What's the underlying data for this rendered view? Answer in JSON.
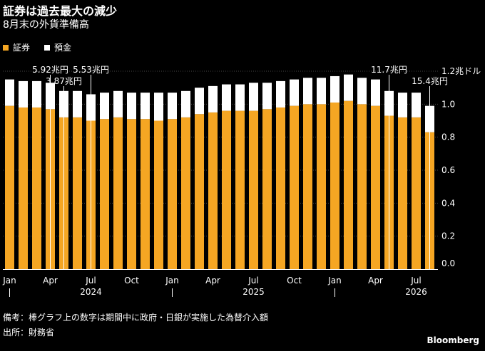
{
  "title": "証券は過去最大の減少",
  "subtitle": "8月末の外貨準備高",
  "legend": {
    "securities_label": "証券",
    "deposits_label": "預金",
    "securities_color": "#F5A623",
    "deposits_color": "#FFFFFF"
  },
  "footer": {
    "note": "備考：棒グラフ上の数字は期間中に政府・日銀が実施した為替介入額",
    "source": "出所：財務省",
    "brand": "Bloomberg"
  },
  "chart_data": {
    "type": "bar",
    "stacked": true,
    "unit_label": "1.2兆ドル",
    "ylim": [
      0,
      1.2
    ],
    "yticks": [
      {
        "value": 1.2,
        "label": "1.2兆ドル"
      },
      {
        "value": 1.0,
        "label": "1.0"
      },
      {
        "value": 0.8,
        "label": "0.8"
      },
      {
        "value": 0.6,
        "label": "0.6"
      },
      {
        "value": 0.4,
        "label": "0.4"
      },
      {
        "value": 0.2,
        "label": "0.2"
      },
      {
        "value": 0.0,
        "label": "0.0"
      }
    ],
    "month_ticks": [
      {
        "index": 0,
        "label": "Jan"
      },
      {
        "index": 3,
        "label": "Apr"
      },
      {
        "index": 6,
        "label": "Jul"
      },
      {
        "index": 9,
        "label": "Oct"
      },
      {
        "index": 12,
        "label": "Jan"
      },
      {
        "index": 15,
        "label": "Apr"
      },
      {
        "index": 18,
        "label": "Jul"
      },
      {
        "index": 21,
        "label": "Oct"
      },
      {
        "index": 24,
        "label": "Jan"
      },
      {
        "index": 27,
        "label": "Apr"
      },
      {
        "index": 30,
        "label": "Jul"
      }
    ],
    "year_ticks": [
      {
        "index": 0,
        "label": "2024"
      },
      {
        "index": 12,
        "label": "2025"
      },
      {
        "index": 24,
        "label": "2026"
      }
    ],
    "series": [
      {
        "name": "証券",
        "color": "#F5A623",
        "values": [
          0.99,
          0.98,
          0.98,
          0.97,
          0.92,
          0.92,
          0.9,
          0.91,
          0.92,
          0.91,
          0.91,
          0.9,
          0.91,
          0.92,
          0.94,
          0.95,
          0.96,
          0.96,
          0.96,
          0.97,
          0.98,
          0.99,
          1.0,
          1.0,
          1.01,
          1.02,
          1.0,
          0.99,
          0.93,
          0.92,
          0.92,
          0.83
        ]
      },
      {
        "name": "預金",
        "color": "#FFFFFF",
        "values": [
          0.16,
          0.16,
          0.16,
          0.16,
          0.16,
          0.16,
          0.16,
          0.16,
          0.16,
          0.16,
          0.16,
          0.17,
          0.16,
          0.16,
          0.16,
          0.16,
          0.16,
          0.16,
          0.17,
          0.16,
          0.16,
          0.16,
          0.16,
          0.16,
          0.16,
          0.16,
          0.16,
          0.16,
          0.15,
          0.15,
          0.15,
          0.16
        ]
      }
    ],
    "annotations": [
      {
        "index": 3,
        "label": "5.92兆円",
        "level": 1
      },
      {
        "index": 4,
        "label": "3.87兆円",
        "level": 2
      },
      {
        "index": 6,
        "label": "5.53兆円",
        "level": 1
      },
      {
        "index": 28,
        "label": "11.7兆円",
        "level": 1
      },
      {
        "index": 31,
        "label": "15.4兆円",
        "level": 2
      }
    ]
  }
}
